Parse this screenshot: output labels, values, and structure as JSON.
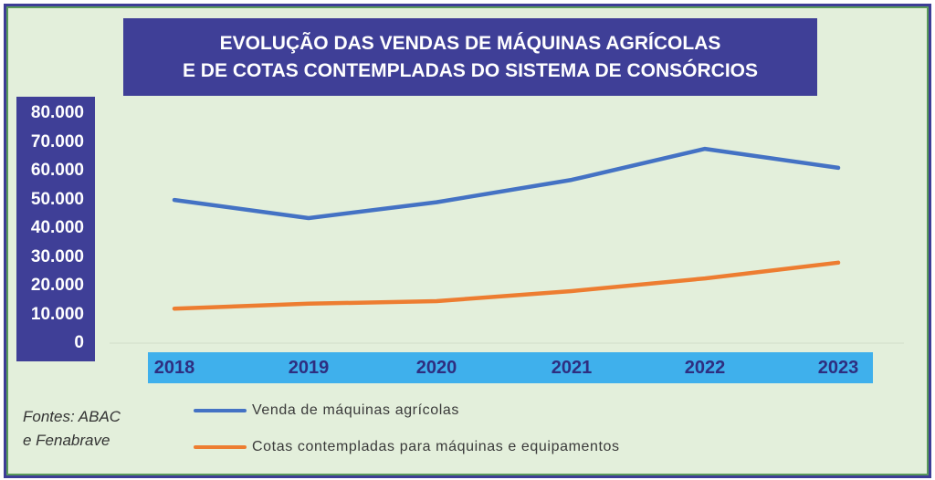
{
  "chart_data": {
    "type": "line",
    "title": "EVOLUÇÃO DAS VENDAS DE MÁQUINAS AGRÍCOLAS E DE COTAS CONTEMPLADAS DO SISTEMA DE CONSÓRCIOS",
    "title_lines": [
      "EVOLUÇÃO DAS VENDAS DE MÁQUINAS AGRÍCOLAS",
      "E DE COTAS CONTEMPLADAS DO SISTEMA DE CONSÓRCIOS"
    ],
    "categories": [
      "2018",
      "2019",
      "2020",
      "2021",
      "2022",
      "2023"
    ],
    "ylim": [
      0,
      80000
    ],
    "yticks": [
      "0",
      "10.000",
      "20.000",
      "30.000",
      "40.000",
      "50.000",
      "60.000",
      "70.000",
      "80.000"
    ],
    "grid": false,
    "legend_position": "bottom",
    "series": [
      {
        "name": "Venda de máquinas agrícolas",
        "color": "#4472c4",
        "values": [
          49800,
          43500,
          49000,
          56800,
          67600,
          61000
        ]
      },
      {
        "name": "Cotas contempladas para máquinas e equipamentos",
        "color": "#ed7d31",
        "values": [
          12000,
          13700,
          14600,
          18100,
          22500,
          28000
        ]
      }
    ],
    "source_lines": [
      "Fontes: ABAC",
      "e Fenabrave"
    ]
  }
}
